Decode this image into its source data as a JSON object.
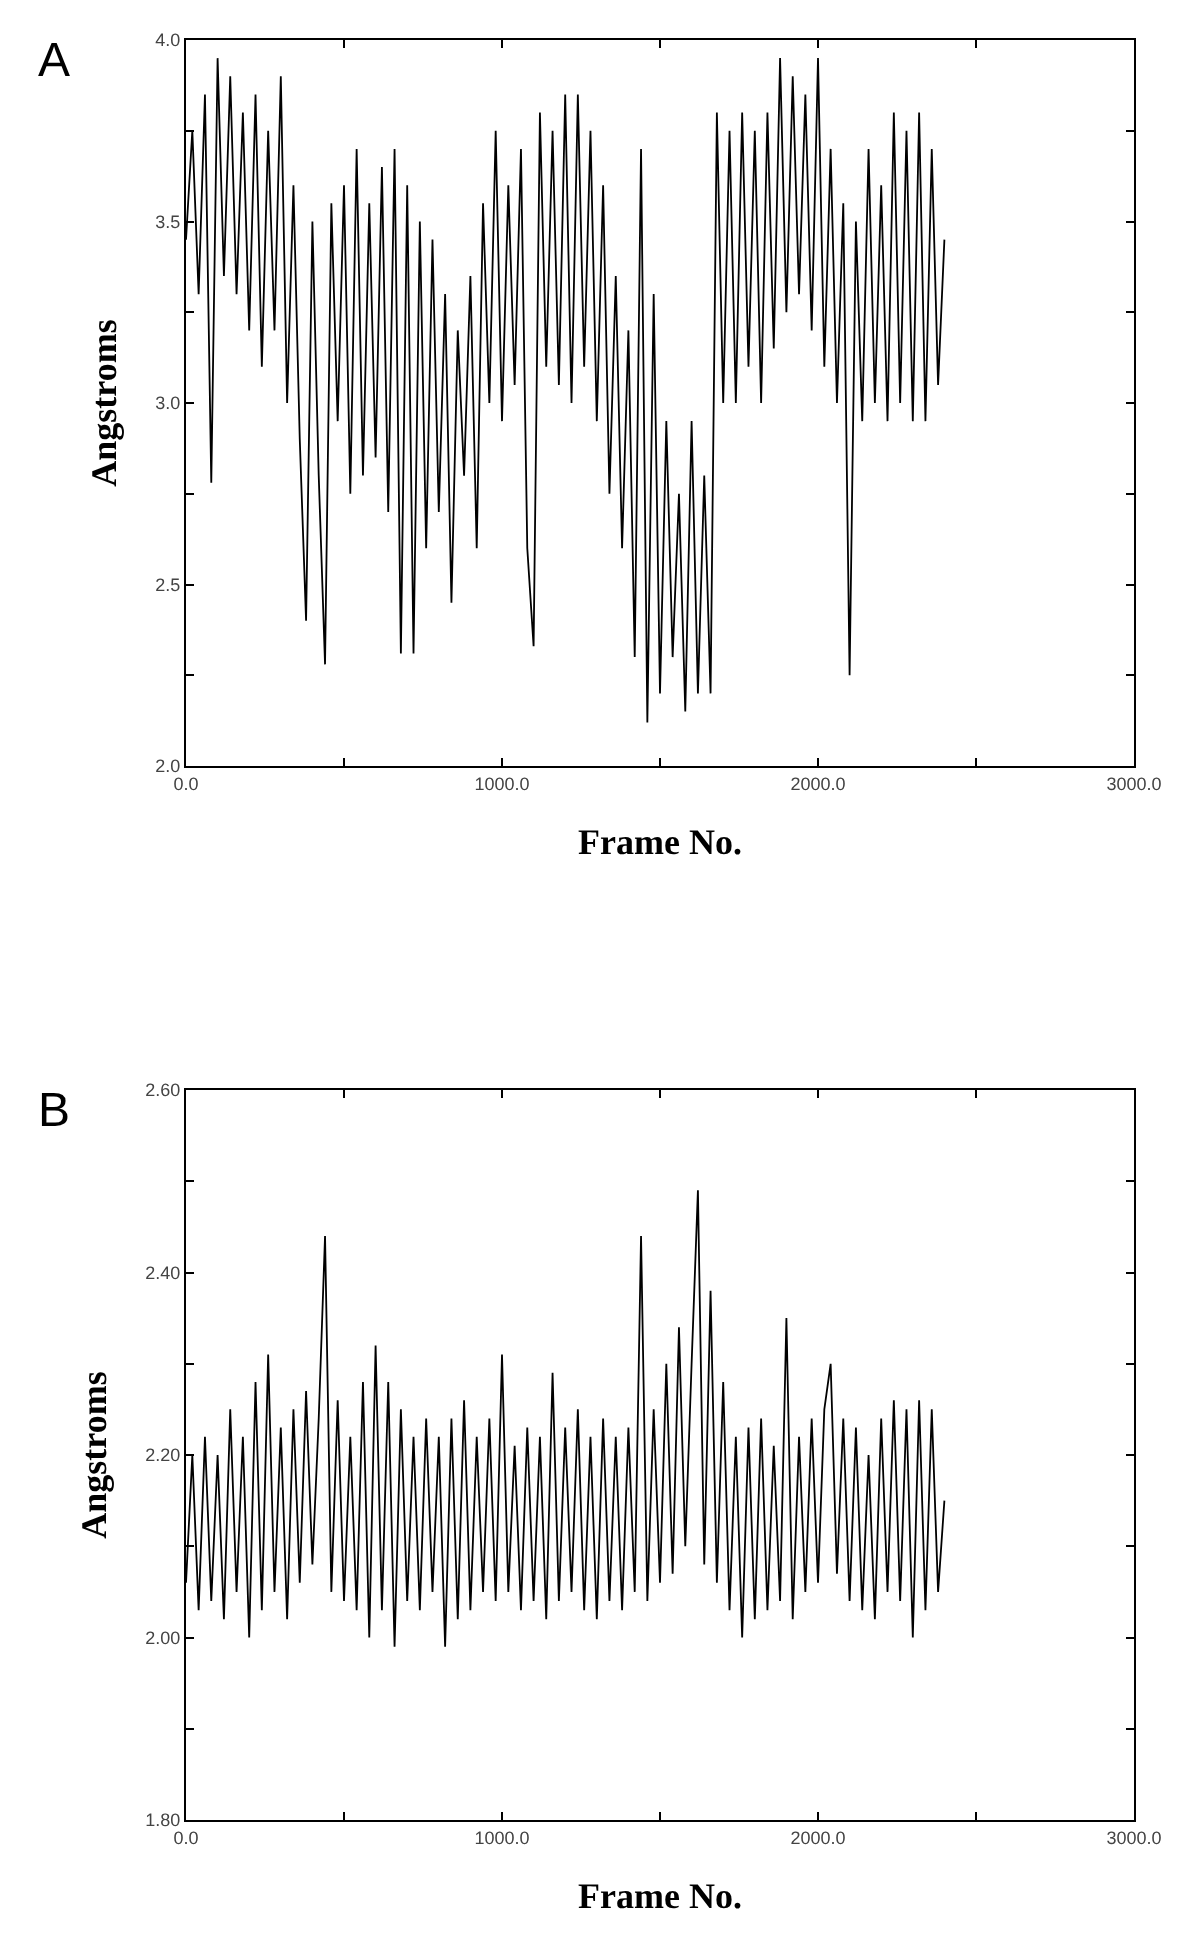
{
  "chart_data": [
    {
      "type": "line",
      "annotations": [
        "A"
      ],
      "xlabel": "Frame No.",
      "ylabel": "Angstroms",
      "marker": "none",
      "line_style": "solid",
      "xlim": [
        0,
        3000
      ],
      "ylim": [
        2.0,
        4.0
      ],
      "xticks": [
        {
          "value": 0,
          "label": "0.0"
        },
        {
          "value": 500,
          "label": null
        },
        {
          "value": 1000,
          "label": "1000.0"
        },
        {
          "value": 1500,
          "label": null
        },
        {
          "value": 2000,
          "label": "2000.0"
        },
        {
          "value": 2500,
          "label": null
        },
        {
          "value": 3000,
          "label": "3000.0"
        }
      ],
      "yticks": [
        {
          "value": 2.0,
          "label": "2.0"
        },
        {
          "value": 2.25,
          "label": null
        },
        {
          "value": 2.5,
          "label": "2.5"
        },
        {
          "value": 2.75,
          "label": null
        },
        {
          "value": 3.0,
          "label": "3.0"
        },
        {
          "value": 3.25,
          "label": null
        },
        {
          "value": 3.5,
          "label": "3.5"
        },
        {
          "value": 3.75,
          "label": null
        },
        {
          "value": 4.0,
          "label": "4.0"
        }
      ],
      "x": [
        0,
        20,
        40,
        60,
        80,
        100,
        120,
        140,
        160,
        180,
        200,
        220,
        240,
        260,
        280,
        300,
        320,
        340,
        360,
        380,
        400,
        420,
        440,
        460,
        480,
        500,
        520,
        540,
        560,
        580,
        600,
        620,
        640,
        660,
        680,
        700,
        720,
        740,
        760,
        780,
        800,
        820,
        840,
        860,
        880,
        900,
        920,
        940,
        960,
        980,
        1000,
        1020,
        1040,
        1060,
        1080,
        1100,
        1120,
        1140,
        1160,
        1180,
        1200,
        1220,
        1240,
        1260,
        1280,
        1300,
        1320,
        1340,
        1360,
        1380,
        1400,
        1420,
        1440,
        1460,
        1480,
        1500,
        1520,
        1540,
        1560,
        1580,
        1600,
        1620,
        1640,
        1660,
        1680,
        1700,
        1720,
        1740,
        1760,
        1780,
        1800,
        1820,
        1840,
        1860,
        1880,
        1900,
        1920,
        1940,
        1960,
        1980,
        2000,
        2020,
        2040,
        2060,
        2080,
        2100,
        2120,
        2140,
        2160,
        2180,
        2200,
        2220,
        2240,
        2260,
        2280,
        2300,
        2320,
        2340,
        2360,
        2380,
        2400
      ],
      "series": [
        {
          "color": "#000000",
          "values": [
            3.45,
            3.75,
            3.3,
            3.85,
            2.78,
            3.95,
            3.35,
            3.9,
            3.3,
            3.8,
            3.2,
            3.85,
            3.1,
            3.75,
            3.2,
            3.9,
            3.0,
            3.6,
            2.9,
            2.4,
            3.5,
            2.8,
            2.28,
            3.55,
            2.95,
            3.6,
            2.75,
            3.7,
            2.8,
            3.55,
            2.85,
            3.65,
            2.7,
            3.7,
            2.31,
            3.6,
            2.31,
            3.5,
            2.6,
            3.45,
            2.7,
            3.3,
            2.45,
            3.2,
            2.8,
            3.35,
            2.6,
            3.55,
            3.0,
            3.75,
            2.95,
            3.6,
            3.05,
            3.7,
            2.6,
            2.33,
            3.8,
            3.1,
            3.75,
            3.05,
            3.85,
            3.0,
            3.85,
            3.1,
            3.75,
            2.95,
            3.6,
            2.75,
            3.35,
            2.6,
            3.2,
            2.3,
            3.7,
            2.12,
            3.3,
            2.2,
            2.95,
            2.3,
            2.75,
            2.15,
            2.95,
            2.2,
            2.8,
            2.2,
            3.8,
            3.0,
            3.75,
            3.0,
            3.8,
            3.1,
            3.75,
            3.0,
            3.8,
            3.15,
            3.95,
            3.25,
            3.9,
            3.3,
            3.85,
            3.2,
            3.95,
            3.1,
            3.7,
            3.0,
            3.55,
            2.25,
            3.5,
            2.95,
            3.7,
            3.0,
            3.6,
            2.95,
            3.8,
            3.0,
            3.75,
            2.95,
            3.8,
            2.95,
            3.7,
            3.05,
            3.45
          ]
        }
      ]
    },
    {
      "type": "line",
      "annotations": [
        "B"
      ],
      "xlabel": "Frame No.",
      "ylabel": "Angstroms",
      "marker": "none",
      "line_style": "solid",
      "xlim": [
        0,
        3000
      ],
      "ylim": [
        1.8,
        2.6
      ],
      "xticks": [
        {
          "value": 0,
          "label": "0.0"
        },
        {
          "value": 500,
          "label": null
        },
        {
          "value": 1000,
          "label": "1000.0"
        },
        {
          "value": 1500,
          "label": null
        },
        {
          "value": 2000,
          "label": "2000.0"
        },
        {
          "value": 2500,
          "label": null
        },
        {
          "value": 3000,
          "label": "3000.0"
        }
      ],
      "yticks": [
        {
          "value": 1.8,
          "label": "1.80"
        },
        {
          "value": 1.9,
          "label": null
        },
        {
          "value": 2.0,
          "label": "2.00"
        },
        {
          "value": 2.1,
          "label": null
        },
        {
          "value": 2.2,
          "label": "2.20"
        },
        {
          "value": 2.3,
          "label": null
        },
        {
          "value": 2.4,
          "label": "2.40"
        },
        {
          "value": 2.5,
          "label": null
        },
        {
          "value": 2.6,
          "label": "2.60"
        }
      ],
      "x": [
        0,
        20,
        40,
        60,
        80,
        100,
        120,
        140,
        160,
        180,
        200,
        220,
        240,
        260,
        280,
        300,
        320,
        340,
        360,
        380,
        400,
        420,
        440,
        460,
        480,
        500,
        520,
        540,
        560,
        580,
        600,
        620,
        640,
        660,
        680,
        700,
        720,
        740,
        760,
        780,
        800,
        820,
        840,
        860,
        880,
        900,
        920,
        940,
        960,
        980,
        1000,
        1020,
        1040,
        1060,
        1080,
        1100,
        1120,
        1140,
        1160,
        1180,
        1200,
        1220,
        1240,
        1260,
        1280,
        1300,
        1320,
        1340,
        1360,
        1380,
        1400,
        1420,
        1440,
        1460,
        1480,
        1500,
        1520,
        1540,
        1560,
        1580,
        1600,
        1620,
        1640,
        1660,
        1680,
        1700,
        1720,
        1740,
        1760,
        1780,
        1800,
        1820,
        1840,
        1860,
        1880,
        1900,
        1920,
        1940,
        1960,
        1980,
        2000,
        2020,
        2040,
        2060,
        2080,
        2100,
        2120,
        2140,
        2160,
        2180,
        2200,
        2220,
        2240,
        2260,
        2280,
        2300,
        2320,
        2340,
        2360,
        2380,
        2400
      ],
      "series": [
        {
          "color": "#000000",
          "values": [
            2.06,
            2.2,
            2.03,
            2.22,
            2.04,
            2.2,
            2.02,
            2.25,
            2.05,
            2.22,
            2.0,
            2.28,
            2.03,
            2.31,
            2.05,
            2.23,
            2.02,
            2.25,
            2.06,
            2.27,
            2.08,
            2.24,
            2.44,
            2.05,
            2.26,
            2.04,
            2.22,
            2.03,
            2.28,
            2.0,
            2.32,
            2.03,
            2.28,
            1.99,
            2.25,
            2.04,
            2.22,
            2.03,
            2.24,
            2.05,
            2.22,
            1.99,
            2.24,
            2.02,
            2.26,
            2.03,
            2.22,
            2.05,
            2.24,
            2.04,
            2.31,
            2.05,
            2.21,
            2.03,
            2.23,
            2.04,
            2.22,
            2.02,
            2.29,
            2.04,
            2.23,
            2.05,
            2.25,
            2.03,
            2.22,
            2.02,
            2.24,
            2.04,
            2.22,
            2.03,
            2.23,
            2.05,
            2.44,
            2.04,
            2.25,
            2.06,
            2.3,
            2.07,
            2.34,
            2.1,
            2.3,
            2.49,
            2.08,
            2.38,
            2.06,
            2.28,
            2.03,
            2.22,
            2.0,
            2.23,
            2.02,
            2.24,
            2.03,
            2.21,
            2.04,
            2.35,
            2.02,
            2.22,
            2.05,
            2.24,
            2.06,
            2.25,
            2.3,
            2.07,
            2.24,
            2.04,
            2.23,
            2.03,
            2.2,
            2.02,
            2.24,
            2.05,
            2.26,
            2.04,
            2.25,
            2.0,
            2.26,
            2.03,
            2.25,
            2.05,
            2.15
          ]
        }
      ]
    }
  ]
}
